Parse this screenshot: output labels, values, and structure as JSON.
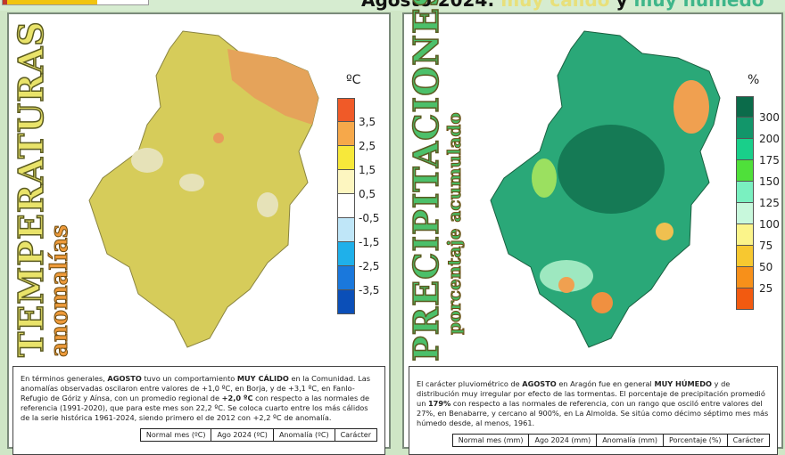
{
  "header": {
    "title_prefix": "Agosto 2024:",
    "title_warm": "muy cálido",
    "title_and": "y",
    "title_wet": "muy húmedo"
  },
  "temperature": {
    "title": "TEMPERATURAS",
    "subtitle": "anomalías",
    "unit": "ºC",
    "legend_labels": [
      "3,5",
      "2,5",
      "1,5",
      "0,5",
      "-0,5",
      "-1,5",
      "-2,5",
      "-3,5"
    ],
    "legend_colors": [
      "#f05a28",
      "#f6a84a",
      "#f7e83a",
      "#fdf6c0",
      "#ffffff",
      "#bfe6f8",
      "#1fb0ea",
      "#1a78dc",
      "#0b4fb8"
    ],
    "text": [
      "En términos generales, ",
      "AGOSTO",
      " tuvo un comportamiento ",
      "MUY CÁLIDO",
      " en la Comunidad. Las anomalías observadas oscilaron entre valores de +1,0 ºC, en Borja, y de +3,1 ºC, en Fanlo-Refugio de Góriz y Aínsa, con un promedio regional de ",
      "+2,0 ºC",
      " con respecto a las normales de referencia (1991-2020), que para este mes son 22,2 ºC. Se coloca cuarto entre los más cálidos de la serie histórica 1961-2024, siendo primero el de 2012 con +2,2 ºC de anomalía."
    ],
    "table_headers": [
      "Normal mes (ºC)",
      "Ago 2024 (ºC)",
      "Anomalía (ºC)",
      "Carácter"
    ]
  },
  "precipitation": {
    "title": "PRECIPITACIONES",
    "subtitle": "porcentaje acumulado",
    "unit": "%",
    "legend_labels": [
      "300",
      "200",
      "175",
      "150",
      "125",
      "100",
      "75",
      "50",
      "25"
    ],
    "legend_colors": [
      "#0b6b4a",
      "#12966a",
      "#19cf8a",
      "#4fe03a",
      "#7af0c0",
      "#c8f8dc",
      "#fbf48a",
      "#f7c830",
      "#f7901a",
      "#f25a10"
    ],
    "text": [
      "El carácter pluviométrico de ",
      "AGOSTO",
      " en Aragón fue en general ",
      "MUY HÚMEDO",
      " y de distribución muy irregular por efecto de las tormentas. El porcentaje de precipitación promedió un ",
      "179%",
      " con respecto a las normales de referencia, con un rango que osciló entre valores del 27%, en Benabarre, y cercano al 900%, en La Almolda. Se sitúa como décimo séptimo mes más húmedo desde, al menos, 1961."
    ],
    "table_headers": [
      "Normal mes (mm)",
      "Ago 2024 (mm)",
      "Anomalía (mm)",
      "Porcentaje (%)",
      "Carácter"
    ]
  }
}
